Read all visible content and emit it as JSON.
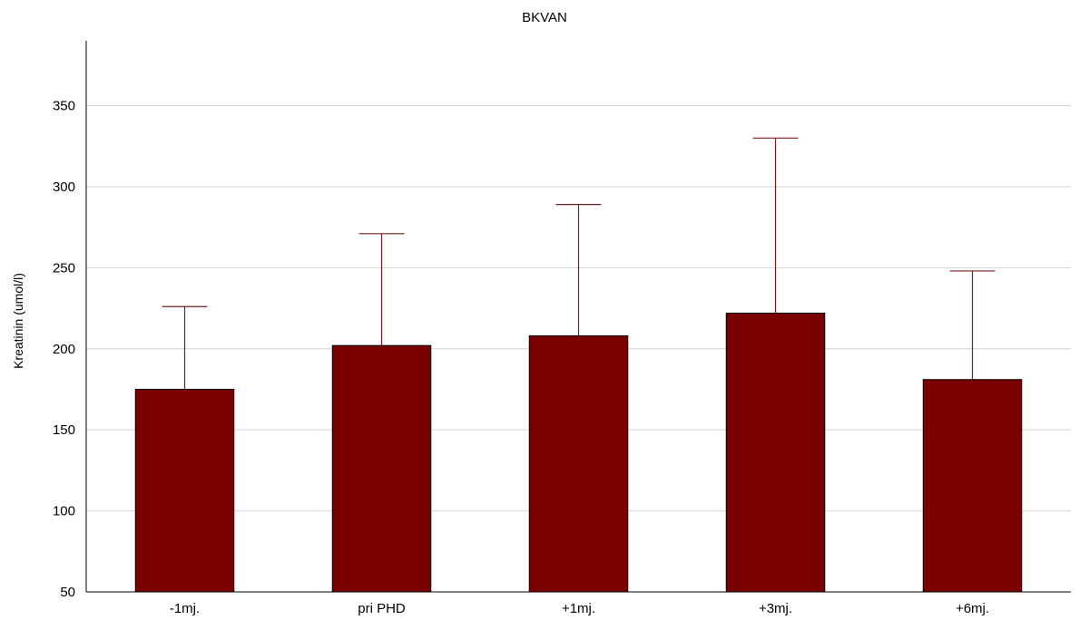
{
  "chart_data": {
    "type": "bar",
    "title": "BKVAN",
    "ylabel": "Kreatinin (umol/l)",
    "xlabel": "",
    "categories": [
      "-1mj.",
      "pri PHD",
      "+1mj.",
      "+3mj.",
      "+6mj."
    ],
    "values": [
      175,
      202,
      208,
      222,
      181
    ],
    "error_upper": [
      226,
      271,
      289,
      330,
      248
    ],
    "ylim": [
      50,
      390
    ],
    "yticks": [
      50,
      100,
      150,
      200,
      250,
      300,
      350
    ],
    "grid": true,
    "colors": {
      "bar": "#7a0000",
      "error": "#7a1e1e"
    }
  }
}
